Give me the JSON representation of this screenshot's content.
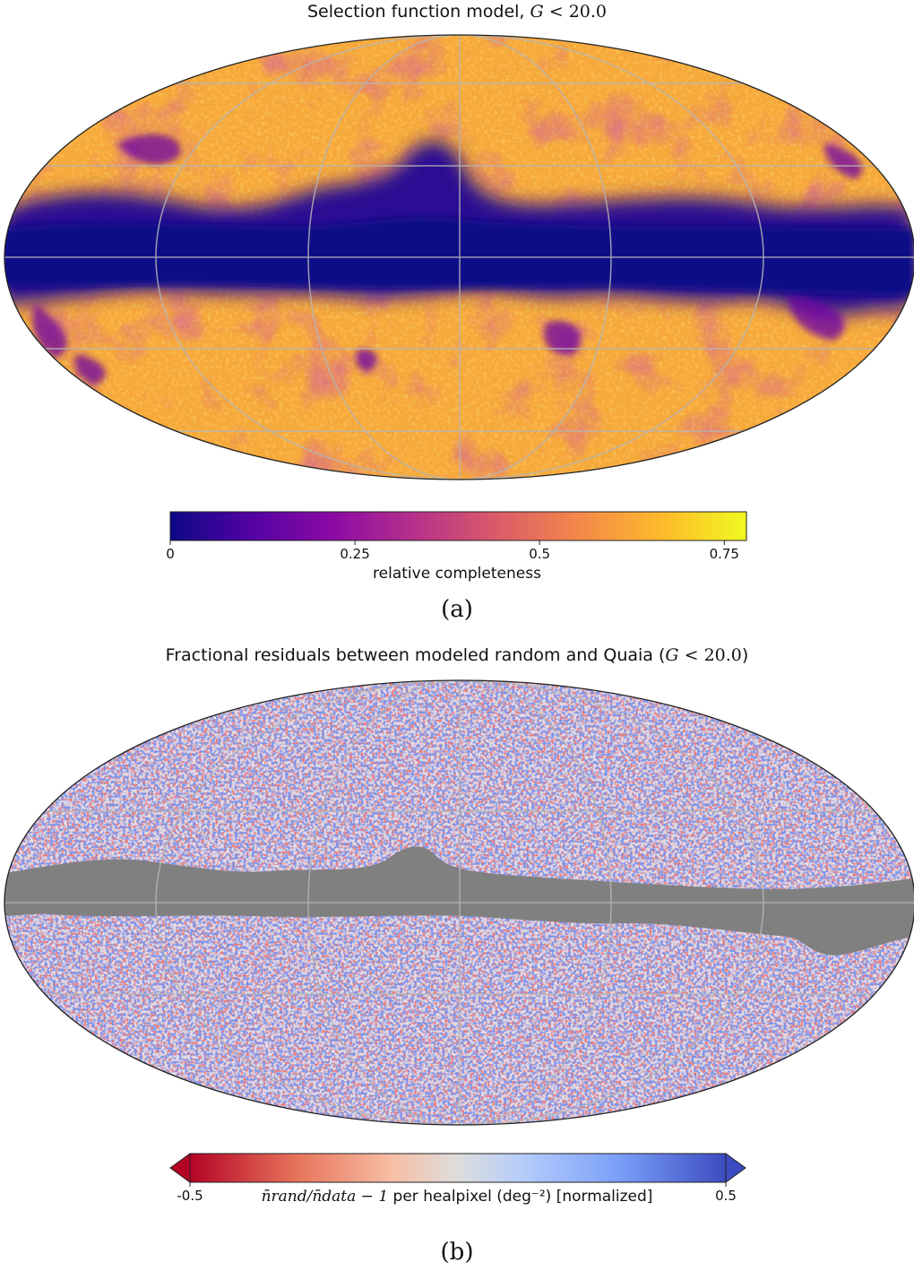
{
  "chart_data": [
    {
      "type": "heatmap",
      "projection": "mollweide",
      "title_prefix": "Selection function model, ",
      "title_math": "G",
      "title_op": " < ",
      "title_value": "20.0",
      "panel_label": "(a)",
      "colormap": "plasma",
      "colorbar": {
        "label": "relative completeness",
        "range": [
          0,
          0.78
        ],
        "ticks": [
          0,
          0.25,
          0.5,
          0.75
        ],
        "tick_labels": [
          "0",
          "0.25",
          "0.5",
          "0.75"
        ],
        "colors": [
          "#0d0887",
          "#5302a3",
          "#8b0aa5",
          "#b83289",
          "#db5c68",
          "#f48849",
          "#febd2a",
          "#f0f921"
        ]
      },
      "grid": true,
      "description_values": {
        "galactic_plane_completeness": 0.0,
        "high_latitude_completeness": 0.7
      }
    },
    {
      "type": "heatmap",
      "projection": "mollweide",
      "title_prefix": "Fractional residuals between modeled random and Quaia (",
      "title_math": "G",
      "title_op": " < ",
      "title_value": "20.0",
      "title_suffix": ")",
      "panel_label": "(b)",
      "colormap": "coolwarm_r",
      "masked_color": "#808080",
      "colorbar": {
        "label_math": "n̄rand/n̄data − 1",
        "label_text": " per healpixel (deg⁻²) [normalized]",
        "range": [
          -0.5,
          0.5
        ],
        "ticks": [
          -0.5,
          0.5
        ],
        "tick_labels": [
          "-0.5",
          "0.5"
        ],
        "extend": "both",
        "colors": [
          "#b40426",
          "#f18d6f",
          "#f2cbb7",
          "#dddddd",
          "#b5cdfa",
          "#7b9ff9",
          "#3b4cc0"
        ]
      },
      "grid": true
    }
  ]
}
